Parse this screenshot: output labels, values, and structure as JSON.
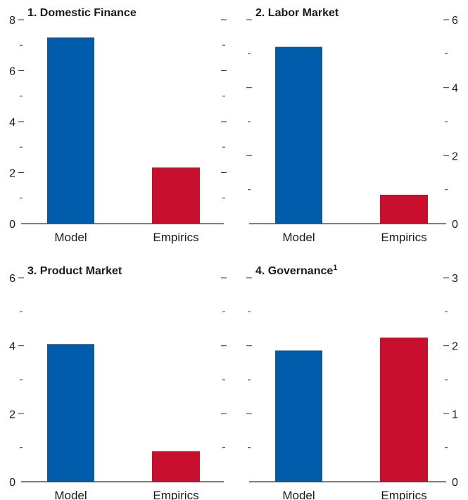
{
  "colors": {
    "model": "#005bab",
    "empirics": "#c8102e"
  },
  "chart_data": [
    {
      "type": "bar",
      "title": "1. Domestic Finance",
      "footnote_marker": "",
      "categories": [
        "Model",
        "Empirics"
      ],
      "values": [
        7.3,
        2.2
      ],
      "ylim": [
        0,
        8
      ],
      "major_ticks": [
        0,
        2,
        4,
        6,
        8
      ],
      "axis_side": "left",
      "grid": false
    },
    {
      "type": "bar",
      "title": "2. Labor Market",
      "footnote_marker": "",
      "categories": [
        "Model",
        "Empirics"
      ],
      "values": [
        5.2,
        0.85
      ],
      "ylim": [
        0,
        6
      ],
      "major_ticks": [
        0,
        2,
        4,
        6
      ],
      "axis_side": "right",
      "grid": false
    },
    {
      "type": "bar",
      "title": "3. Product Market",
      "footnote_marker": "",
      "categories": [
        "Model",
        "Empirics"
      ],
      "values": [
        4.05,
        0.9
      ],
      "ylim": [
        0,
        6
      ],
      "major_ticks": [
        0,
        2,
        4,
        6
      ],
      "axis_side": "left",
      "grid": false
    },
    {
      "type": "bar",
      "title": "4. Governance",
      "footnote_marker": "1",
      "categories": [
        "Model",
        "Empirics"
      ],
      "values": [
        1.93,
        2.12
      ],
      "ylim": [
        0,
        3
      ],
      "major_ticks": [
        0,
        1,
        2,
        3
      ],
      "axis_side": "right",
      "grid": false
    }
  ]
}
